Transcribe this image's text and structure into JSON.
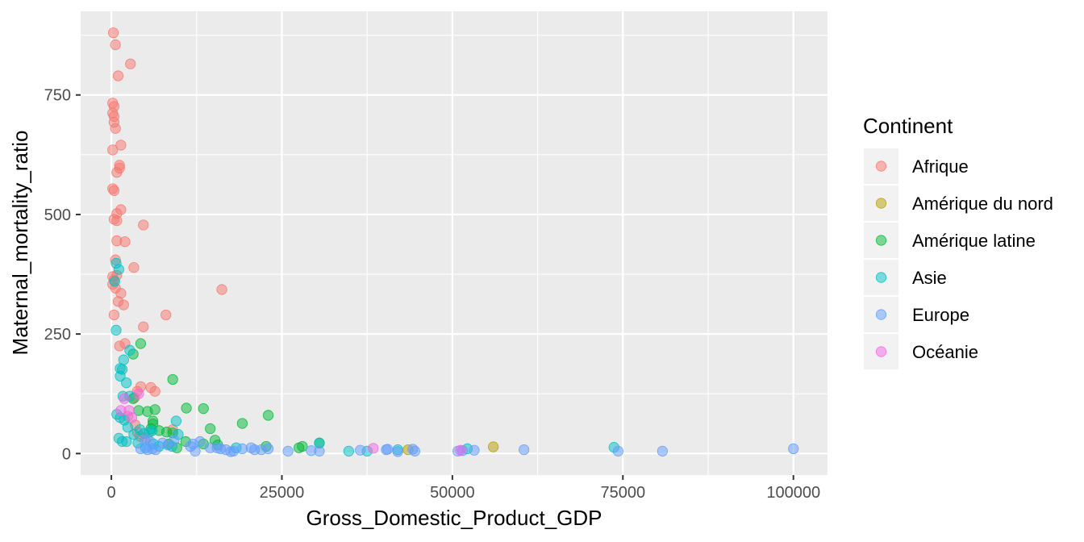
{
  "chart_data": {
    "type": "scatter",
    "xlabel": "Gross_Domestic_Product_GDP",
    "ylabel": "Maternal_mortality_ratio",
    "xlim": [
      -4500,
      105000
    ],
    "ylim": [
      -45,
      925
    ],
    "x_ticks": [
      0,
      25000,
      50000,
      75000,
      100000
    ],
    "y_ticks": [
      0,
      250,
      500,
      750
    ],
    "grid": true,
    "legend_title": "Continent",
    "legend_position": "right",
    "series": [
      {
        "name": "Afrique",
        "color": "#F8766D",
        "points": [
          [
            300,
            880
          ],
          [
            600,
            855
          ],
          [
            2800,
            815
          ],
          [
            1000,
            790
          ],
          [
            200,
            733
          ],
          [
            400,
            726
          ],
          [
            200,
            712
          ],
          [
            400,
            705
          ],
          [
            400,
            693
          ],
          [
            600,
            680
          ],
          [
            1400,
            645
          ],
          [
            200,
            635
          ],
          [
            1200,
            603
          ],
          [
            1200,
            597
          ],
          [
            800,
            588
          ],
          [
            200,
            554
          ],
          [
            400,
            550
          ],
          [
            1400,
            510
          ],
          [
            800,
            502
          ],
          [
            400,
            490
          ],
          [
            800,
            487
          ],
          [
            4700,
            478
          ],
          [
            800,
            445
          ],
          [
            2000,
            443
          ],
          [
            600,
            405
          ],
          [
            3300,
            389
          ],
          [
            800,
            373
          ],
          [
            200,
            370
          ],
          [
            400,
            363
          ],
          [
            200,
            354
          ],
          [
            600,
            346
          ],
          [
            16200,
            343
          ],
          [
            1400,
            335
          ],
          [
            1000,
            318
          ],
          [
            1800,
            311
          ],
          [
            400,
            290
          ],
          [
            8000,
            290
          ],
          [
            4700,
            265
          ],
          [
            2000,
            230
          ],
          [
            1200,
            225
          ],
          [
            4300,
            140
          ],
          [
            5800,
            138
          ],
          [
            6400,
            130
          ],
          [
            3800,
            130
          ],
          [
            3400,
            117
          ],
          [
            3500,
            60
          ],
          [
            3800,
            45
          ],
          [
            4200,
            36
          ],
          [
            5200,
            33
          ],
          [
            9000,
            50
          ],
          [
            2400,
            78
          ]
        ]
      },
      {
        "name": "Amérique du nord",
        "color": "#B79F00",
        "points": [
          [
            56000,
            14
          ],
          [
            43500,
            8
          ]
        ]
      },
      {
        "name": "Amérique latine",
        "color": "#00BA38",
        "points": [
          [
            3200,
            208
          ],
          [
            4300,
            230
          ],
          [
            9000,
            155
          ],
          [
            3200,
            115
          ],
          [
            11000,
            95
          ],
          [
            13500,
            94
          ],
          [
            23000,
            80
          ],
          [
            6400,
            92
          ],
          [
            4000,
            90
          ],
          [
            5300,
            88
          ],
          [
            19200,
            63
          ],
          [
            14500,
            52
          ],
          [
            6100,
            68
          ],
          [
            6100,
            62
          ],
          [
            7000,
            48
          ],
          [
            8100,
            45
          ],
          [
            9000,
            43
          ],
          [
            5800,
            52
          ],
          [
            10900,
            25
          ],
          [
            8400,
            20
          ],
          [
            15200,
            28
          ],
          [
            15600,
            18
          ],
          [
            22700,
            15
          ],
          [
            28000,
            15
          ],
          [
            30500,
            22
          ],
          [
            27500,
            12
          ],
          [
            13500,
            20
          ],
          [
            9600,
            12
          ]
        ]
      },
      {
        "name": "Asie",
        "color": "#00BFC4",
        "points": [
          [
            700,
            398
          ],
          [
            1100,
            385
          ],
          [
            500,
            360
          ],
          [
            700,
            258
          ],
          [
            2700,
            216
          ],
          [
            1800,
            196
          ],
          [
            1300,
            178
          ],
          [
            1600,
            176
          ],
          [
            1300,
            162
          ],
          [
            2200,
            148
          ],
          [
            2700,
            120
          ],
          [
            1700,
            120
          ],
          [
            800,
            82
          ],
          [
            1300,
            75
          ],
          [
            1900,
            70
          ],
          [
            2400,
            55
          ],
          [
            9500,
            68
          ],
          [
            4200,
            50
          ],
          [
            5600,
            45
          ],
          [
            4800,
            42
          ],
          [
            6000,
            48
          ],
          [
            9800,
            40
          ],
          [
            3300,
            40
          ],
          [
            1100,
            32
          ],
          [
            1600,
            25
          ],
          [
            2200,
            25
          ],
          [
            3900,
            22
          ],
          [
            8900,
            15
          ],
          [
            18300,
            12
          ],
          [
            30500,
            22
          ],
          [
            34800,
            5
          ],
          [
            52200,
            10
          ],
          [
            73700,
            13
          ],
          [
            37500,
            5
          ],
          [
            42000,
            8
          ],
          [
            5000,
            12
          ],
          [
            6200,
            20
          ],
          [
            7000,
            15
          ]
        ]
      },
      {
        "name": "Europe",
        "color": "#619CFF",
        "points": [
          [
            100000,
            10
          ],
          [
            80800,
            5
          ],
          [
            74300,
            5
          ],
          [
            60500,
            8
          ],
          [
            53200,
            7
          ],
          [
            50800,
            5
          ],
          [
            51500,
            6
          ],
          [
            44200,
            9
          ],
          [
            44500,
            5
          ],
          [
            42000,
            4
          ],
          [
            40300,
            8
          ],
          [
            36500,
            7
          ],
          [
            30500,
            5
          ],
          [
            29300,
            6
          ],
          [
            25900,
            5
          ],
          [
            23000,
            10
          ],
          [
            21000,
            8
          ],
          [
            20500,
            12
          ],
          [
            19200,
            10
          ],
          [
            17900,
            5
          ],
          [
            17500,
            4
          ],
          [
            16800,
            8
          ],
          [
            16000,
            10
          ],
          [
            14500,
            12
          ],
          [
            13000,
            25
          ],
          [
            12300,
            5
          ],
          [
            11600,
            15
          ],
          [
            9200,
            28
          ],
          [
            8300,
            18
          ],
          [
            7500,
            22
          ],
          [
            6500,
            8
          ],
          [
            6000,
            10
          ],
          [
            5700,
            25
          ],
          [
            5300,
            8
          ],
          [
            4900,
            28
          ],
          [
            4300,
            10
          ],
          [
            40500,
            9
          ],
          [
            12000,
            20
          ],
          [
            15500,
            12
          ],
          [
            22000,
            8
          ]
        ]
      },
      {
        "name": "Océanie",
        "color": "#F564E3",
        "points": [
          [
            1900,
            115
          ],
          [
            1400,
            90
          ],
          [
            2600,
            90
          ],
          [
            4000,
            125
          ],
          [
            3000,
            75
          ],
          [
            38400,
            11
          ],
          [
            51200,
            7
          ]
        ]
      }
    ]
  }
}
